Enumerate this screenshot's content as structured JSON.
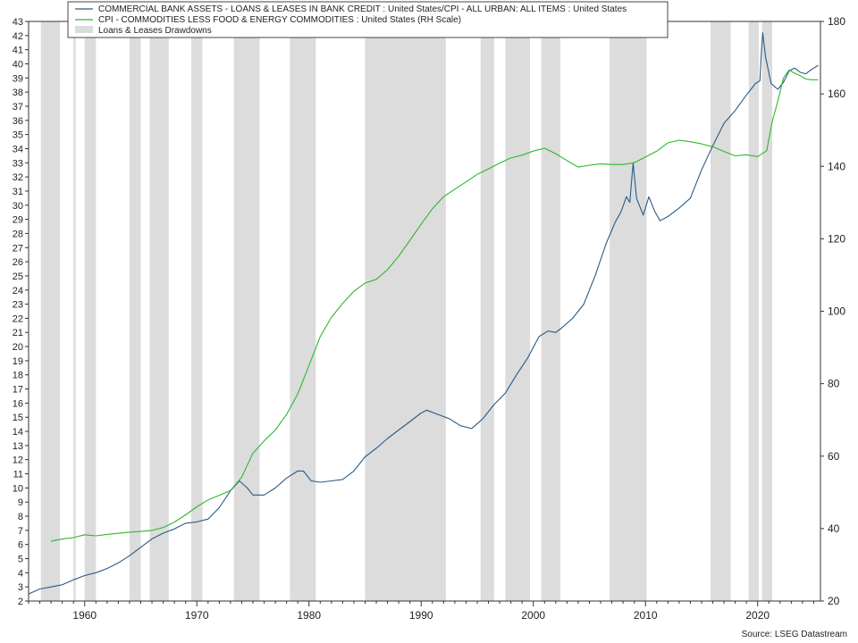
{
  "source": "Source: LSEG Datastream",
  "legend": {
    "loans_label": "COMMERCIAL BANK ASSETS - LOANS & LEASES IN BANK CREDIT : United States/CPI - ALL URBAN: ALL ITEMS : United States",
    "cpi_label": "CPI - COMMODITIES LESS FOOD & ENERGY COMMODITIES : United States (RH Scale)",
    "drawdown_label": "Loans & Leases Drawdowns"
  },
  "colors": {
    "loans": "#2a5a86",
    "cpi": "#2db82d",
    "drawdown": "#dcdcdc",
    "axis": "#333333"
  },
  "chart_data": {
    "type": "line",
    "x_ticks": [
      "1960",
      "1970",
      "1980",
      "1990",
      "2000",
      "2010",
      "2020"
    ],
    "x_range": [
      1955.0,
      2025.6
    ],
    "y_left": {
      "range": [
        2,
        43
      ],
      "ticks": [
        "2",
        "3",
        "4",
        "5",
        "6",
        "7",
        "8",
        "9",
        "10",
        "11",
        "12",
        "13",
        "14",
        "15",
        "16",
        "17",
        "18",
        "19",
        "20",
        "21",
        "22",
        "23",
        "24",
        "25",
        "26",
        "27",
        "28",
        "29",
        "30",
        "31",
        "32",
        "33",
        "34",
        "35",
        "36",
        "37",
        "38",
        "39",
        "40",
        "41",
        "42",
        "43"
      ]
    },
    "y_right": {
      "range": [
        20,
        180
      ],
      "ticks": [
        "20",
        "40",
        "60",
        "80",
        "100",
        "120",
        "140",
        "160",
        "180"
      ]
    },
    "legend_position": "top-left",
    "grid": false,
    "drawdowns": [
      [
        1956.1,
        1957.8
      ],
      [
        1959.0,
        1959.2
      ],
      [
        1960.0,
        1961.0
      ],
      [
        1964.0,
        1965.0
      ],
      [
        1965.8,
        1967.5
      ],
      [
        1969.5,
        1970.5
      ],
      [
        1973.3,
        1975.6
      ],
      [
        1978.3,
        1980.6
      ],
      [
        1985.0,
        1992.2
      ],
      [
        1995.3,
        1996.5
      ],
      [
        1997.5,
        1999.7
      ],
      [
        2000.7,
        2002.4
      ],
      [
        2006.8,
        2010.1
      ],
      [
        2015.8,
        2017.6
      ],
      [
        2019.2,
        2020.1
      ],
      [
        2020.4,
        2021.3
      ]
    ],
    "series": [
      {
        "name": "COMMERCIAL BANK ASSETS - LOANS & LEASES IN BANK CREDIT : United States/CPI - ALL URBAN: ALL ITEMS : United States",
        "axis": "left",
        "points": [
          [
            1955.0,
            2.5
          ],
          [
            1956.0,
            2.85
          ],
          [
            1957.0,
            3.0
          ],
          [
            1958.0,
            3.15
          ],
          [
            1959.0,
            3.5
          ],
          [
            1960.0,
            3.8
          ],
          [
            1961.0,
            4.0
          ],
          [
            1962.0,
            4.3
          ],
          [
            1963.0,
            4.7
          ],
          [
            1964.0,
            5.2
          ],
          [
            1965.0,
            5.8
          ],
          [
            1966.0,
            6.4
          ],
          [
            1967.0,
            6.8
          ],
          [
            1968.0,
            7.1
          ],
          [
            1969.0,
            7.5
          ],
          [
            1970.0,
            7.6
          ],
          [
            1971.0,
            7.8
          ],
          [
            1972.0,
            8.6
          ],
          [
            1973.0,
            9.8
          ],
          [
            1973.8,
            10.5
          ],
          [
            1974.5,
            10.0
          ],
          [
            1975.0,
            9.5
          ],
          [
            1976.0,
            9.5
          ],
          [
            1977.0,
            10.0
          ],
          [
            1978.0,
            10.7
          ],
          [
            1979.0,
            11.2
          ],
          [
            1979.5,
            11.2
          ],
          [
            1980.2,
            10.5
          ],
          [
            1981.0,
            10.4
          ],
          [
            1982.0,
            10.5
          ],
          [
            1983.0,
            10.6
          ],
          [
            1984.0,
            11.2
          ],
          [
            1985.0,
            12.2
          ],
          [
            1986.0,
            12.8
          ],
          [
            1987.0,
            13.5
          ],
          [
            1988.0,
            14.1
          ],
          [
            1989.0,
            14.7
          ],
          [
            1990.0,
            15.3
          ],
          [
            1990.5,
            15.5
          ],
          [
            1991.5,
            15.2
          ],
          [
            1992.5,
            14.9
          ],
          [
            1993.5,
            14.4
          ],
          [
            1994.5,
            14.2
          ],
          [
            1995.5,
            14.9
          ],
          [
            1996.5,
            15.9
          ],
          [
            1997.5,
            16.7
          ],
          [
            1998.5,
            18.0
          ],
          [
            1999.5,
            19.2
          ],
          [
            2000.5,
            20.7
          ],
          [
            2001.3,
            21.1
          ],
          [
            2002.0,
            21.0
          ],
          [
            2002.5,
            21.3
          ],
          [
            2003.5,
            22.0
          ],
          [
            2004.5,
            23.0
          ],
          [
            2005.5,
            25.0
          ],
          [
            2006.5,
            27.3
          ],
          [
            2007.3,
            28.8
          ],
          [
            2007.8,
            29.5
          ],
          [
            2008.3,
            30.6
          ],
          [
            2008.6,
            30.2
          ],
          [
            2008.9,
            33.0
          ],
          [
            2009.2,
            30.5
          ],
          [
            2009.8,
            29.3
          ],
          [
            2010.3,
            30.6
          ],
          [
            2010.8,
            29.6
          ],
          [
            2011.3,
            28.9
          ],
          [
            2012.0,
            29.2
          ],
          [
            2013.0,
            29.8
          ],
          [
            2014.0,
            30.5
          ],
          [
            2015.0,
            32.5
          ],
          [
            2016.0,
            34.2
          ],
          [
            2017.0,
            35.8
          ],
          [
            2018.0,
            36.7
          ],
          [
            2019.0,
            37.8
          ],
          [
            2019.8,
            38.6
          ],
          [
            2020.2,
            38.8
          ],
          [
            2020.35,
            41.0
          ],
          [
            2020.45,
            42.2
          ],
          [
            2020.7,
            40.5
          ],
          [
            2021.2,
            38.6
          ],
          [
            2021.8,
            38.2
          ],
          [
            2022.3,
            38.7
          ],
          [
            2022.8,
            39.5
          ],
          [
            2023.3,
            39.7
          ],
          [
            2023.8,
            39.4
          ],
          [
            2024.3,
            39.3
          ],
          [
            2024.8,
            39.6
          ],
          [
            2025.4,
            39.9
          ]
        ]
      },
      {
        "name": "CPI - COMMODITIES LESS FOOD & ENERGY COMMODITIES : United States (RH Scale)",
        "axis": "right",
        "points": [
          [
            1957.0,
            36.5
          ],
          [
            1958.0,
            37.1
          ],
          [
            1959.0,
            37.5
          ],
          [
            1960.0,
            38.3
          ],
          [
            1961.0,
            38.0
          ],
          [
            1962.0,
            38.4
          ],
          [
            1963.0,
            38.7
          ],
          [
            1964.0,
            39.0
          ],
          [
            1965.0,
            39.2
          ],
          [
            1966.0,
            39.5
          ],
          [
            1967.0,
            40.3
          ],
          [
            1968.0,
            41.8
          ],
          [
            1969.0,
            43.8
          ],
          [
            1970.0,
            46.0
          ],
          [
            1971.0,
            47.9
          ],
          [
            1972.0,
            49.2
          ],
          [
            1973.0,
            50.5
          ],
          [
            1974.0,
            54.2
          ],
          [
            1975.0,
            60.8
          ],
          [
            1976.0,
            64.2
          ],
          [
            1977.0,
            67.2
          ],
          [
            1978.0,
            71.5
          ],
          [
            1979.0,
            77.2
          ],
          [
            1980.0,
            85.0
          ],
          [
            1981.0,
            93.0
          ],
          [
            1982.0,
            98.3
          ],
          [
            1983.0,
            102.2
          ],
          [
            1984.0,
            105.5
          ],
          [
            1985.0,
            107.8
          ],
          [
            1986.0,
            108.8
          ],
          [
            1987.0,
            111.5
          ],
          [
            1988.0,
            115.2
          ],
          [
            1989.0,
            119.6
          ],
          [
            1990.0,
            124.0
          ],
          [
            1991.0,
            128.3
          ],
          [
            1992.0,
            131.6
          ],
          [
            1993.0,
            133.7
          ],
          [
            1994.0,
            135.7
          ],
          [
            1995.0,
            137.8
          ],
          [
            1996.0,
            139.3
          ],
          [
            1997.0,
            140.9
          ],
          [
            1998.0,
            142.3
          ],
          [
            1999.0,
            143.1
          ],
          [
            2000.0,
            144.2
          ],
          [
            2001.0,
            145.0
          ],
          [
            2002.0,
            143.5
          ],
          [
            2003.0,
            141.6
          ],
          [
            2004.0,
            139.8
          ],
          [
            2005.0,
            140.3
          ],
          [
            2006.0,
            140.7
          ],
          [
            2007.0,
            140.5
          ],
          [
            2008.0,
            140.5
          ],
          [
            2009.0,
            141.0
          ],
          [
            2010.0,
            142.6
          ],
          [
            2011.0,
            144.2
          ],
          [
            2012.0,
            146.5
          ],
          [
            2013.0,
            147.2
          ],
          [
            2014.0,
            146.8
          ],
          [
            2015.0,
            146.2
          ],
          [
            2016.0,
            145.4
          ],
          [
            2017.0,
            144.1
          ],
          [
            2018.0,
            142.9
          ],
          [
            2019.0,
            143.2
          ],
          [
            2020.0,
            142.7
          ],
          [
            2020.8,
            144.3
          ],
          [
            2021.3,
            152.3
          ],
          [
            2021.8,
            158.0
          ],
          [
            2022.3,
            164.4
          ],
          [
            2022.8,
            166.6
          ],
          [
            2023.3,
            165.7
          ],
          [
            2023.8,
            165.0
          ],
          [
            2024.3,
            164.1
          ],
          [
            2024.8,
            163.9
          ],
          [
            2025.4,
            163.9
          ]
        ]
      }
    ]
  }
}
